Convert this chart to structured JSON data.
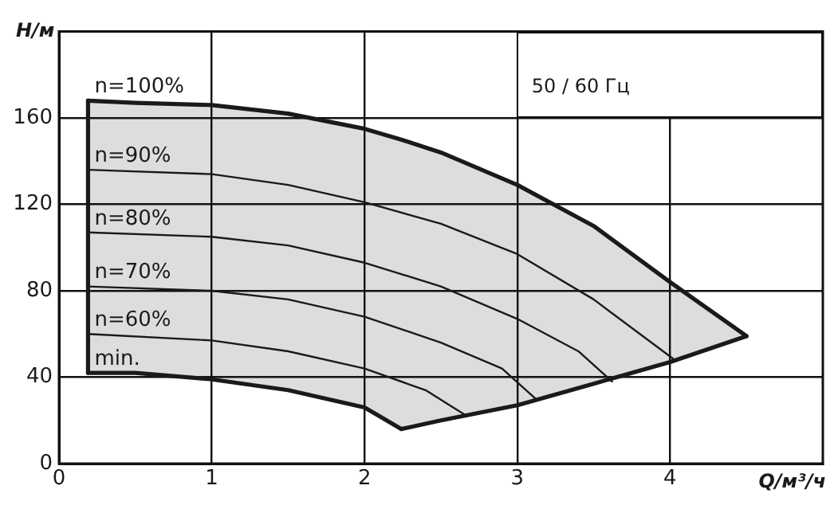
{
  "chart_data": {
    "type": "line",
    "subtitle": "50 / 60 Гц",
    "xlabel": "Q/м³/ч",
    "ylabel": "H/м",
    "xlim": [
      0,
      5
    ],
    "xticks": [
      0,
      1,
      2,
      3,
      4
    ],
    "ylim": [
      0,
      200
    ],
    "yticks": [
      0,
      40,
      80,
      120,
      160
    ],
    "grid": true,
    "legend": false,
    "marker": "none",
    "series": [
      {
        "name": "n=100%",
        "color": "#1a1a1a",
        "x": [
          0.19,
          0.5,
          1,
          1.5,
          2,
          2.24,
          2.5,
          3,
          3.5,
          4,
          4.5
        ],
        "values": [
          168,
          167,
          166,
          162,
          155,
          150,
          144,
          129,
          110,
          84,
          59
        ],
        "lower": [
          42,
          42,
          39,
          34,
          26,
          16,
          20,
          27,
          37,
          47,
          59
        ],
        "upper": [
          168,
          167,
          166,
          162,
          155,
          150,
          144,
          129,
          110,
          84,
          59
        ]
      },
      {
        "name": "n=90%",
        "color": "#1a1a1a",
        "x": [
          0.19,
          1,
          1.5,
          2,
          2.5,
          3,
          3.5,
          4.03
        ],
        "values": [
          136,
          134,
          129,
          121,
          111,
          97,
          76,
          48
        ]
      },
      {
        "name": "n=80%",
        "color": "#1a1a1a",
        "x": [
          0.19,
          1,
          1.5,
          2,
          2.5,
          3,
          3.4,
          3.62
        ],
        "values": [
          107,
          105,
          101,
          93,
          82,
          67,
          52,
          38
        ]
      },
      {
        "name": "n=70%",
        "color": "#1a1a1a",
        "x": [
          0.19,
          1,
          1.5,
          2,
          2.5,
          2.9,
          3.12
        ],
        "values": [
          82,
          80,
          76,
          68,
          56,
          44,
          30
        ]
      },
      {
        "name": "n=60%",
        "color": "#1a1a1a",
        "x": [
          0.19,
          1,
          1.5,
          2,
          2.4,
          2.67
        ],
        "values": [
          60,
          57,
          52,
          44,
          34,
          22
        ]
      },
      {
        "name": "min.",
        "color": "#1a1a1a",
        "x": [
          0.19,
          0.5,
          1,
          1.5,
          2,
          2.24
        ],
        "values": [
          42,
          42,
          39,
          34,
          26,
          16
        ]
      },
      {
        "color": "#1a1a1a",
        "x": [
          0.19,
          0.19
        ],
        "values": [
          42,
          168
        ]
      },
      {
        "color": "#1a1a1a",
        "x": [
          2.24,
          2.5,
          3,
          3.5,
          4,
          4.5
        ],
        "values": [
          16,
          20,
          27,
          37,
          47,
          59
        ]
      }
    ]
  }
}
